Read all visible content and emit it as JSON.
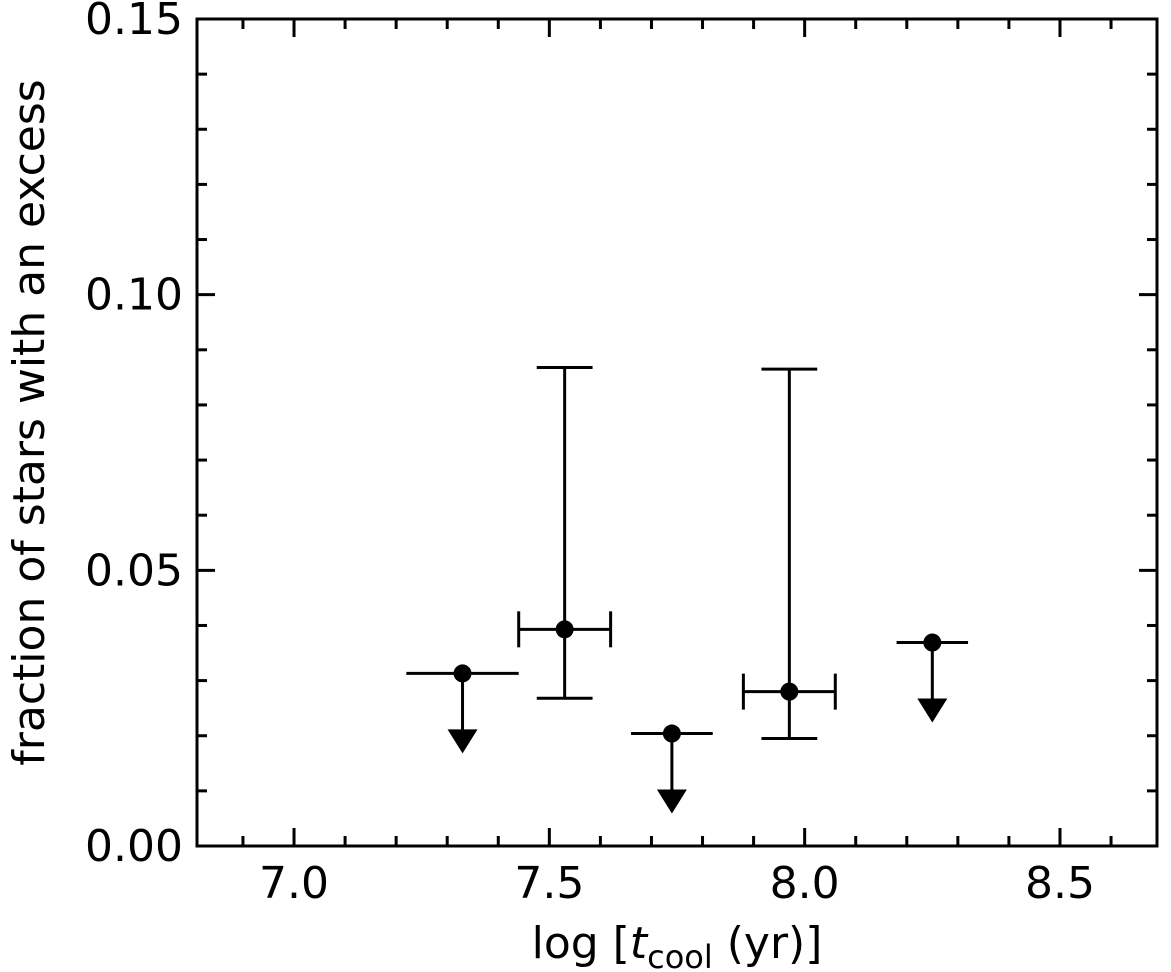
{
  "chart_data": {
    "type": "scatter",
    "xlabel": {
      "prefix": "log [",
      "var": "t",
      "sub": "cool",
      "suffix": " (yr)]"
    },
    "ylabel": "fraction of stars with an excess",
    "xlim": [
      6.81,
      8.69
    ],
    "ylim": [
      0.0,
      0.15
    ],
    "x_major_ticks": [
      7.0,
      7.5,
      8.0,
      8.5
    ],
    "x_tick_labels": [
      "7.0",
      "7.5",
      "8.0",
      "8.5"
    ],
    "x_minor_step": 0.1,
    "y_major_ticks": [
      0.0,
      0.05,
      0.1,
      0.15
    ],
    "y_tick_labels": [
      "0.00",
      "0.05",
      "0.10",
      "0.15"
    ],
    "y_minor_step": 0.01,
    "grid": false,
    "points": [
      {
        "x": 7.33,
        "y": 0.0313,
        "xerr": [
          0.11,
          0.11
        ],
        "type": "upper_limit"
      },
      {
        "x": 7.53,
        "y": 0.0393,
        "xerr": [
          0.09,
          0.09
        ],
        "yerr": [
          0.0125,
          0.0475
        ],
        "type": "measurement"
      },
      {
        "x": 7.74,
        "y": 0.0204,
        "xerr": [
          0.08,
          0.08
        ],
        "type": "upper_limit"
      },
      {
        "x": 7.97,
        "y": 0.028,
        "xerr": [
          0.09,
          0.09
        ],
        "yerr": [
          0.0085,
          0.0585
        ],
        "type": "measurement"
      },
      {
        "x": 8.25,
        "y": 0.0369,
        "xerr": [
          0.07,
          0.07
        ],
        "type": "upper_limit"
      }
    ]
  }
}
